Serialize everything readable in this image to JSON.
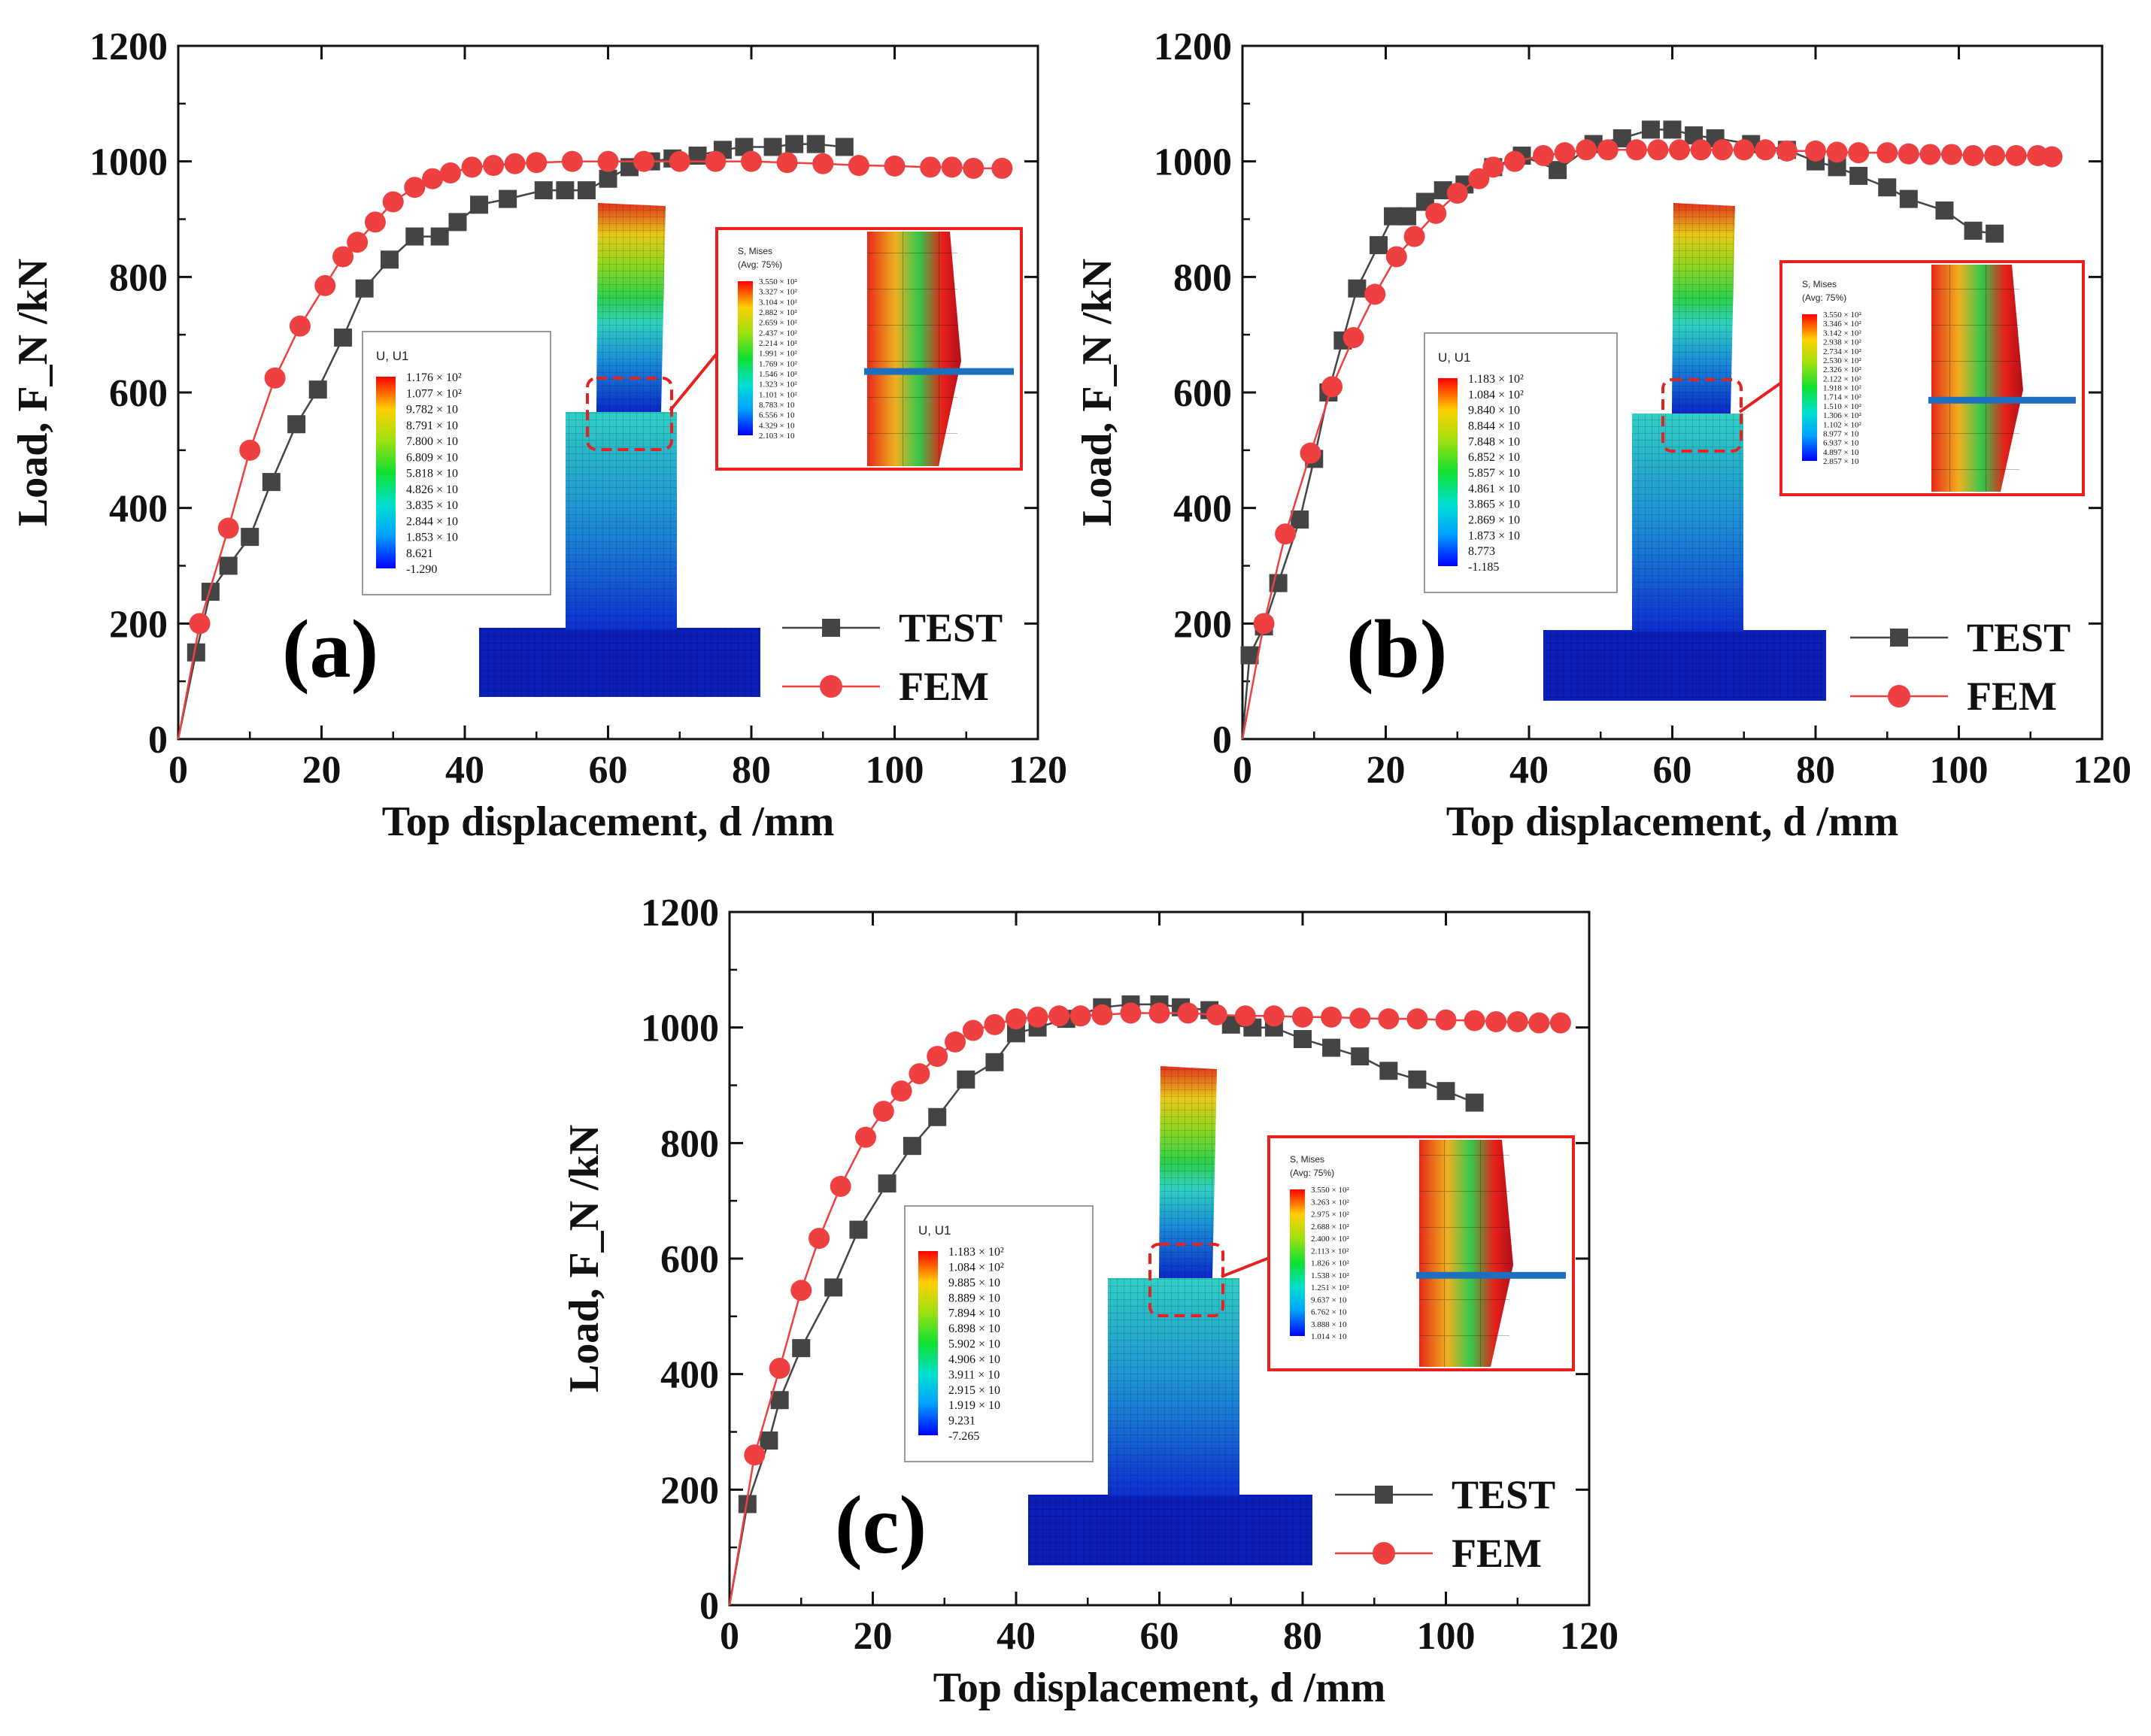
{
  "chart_data": [
    {
      "type": "line",
      "panel_label": "(a)",
      "xlabel": "Top displacement, d /mm",
      "ylabel": "Load, F_N /kN",
      "xlim": [
        0,
        120
      ],
      "ylim": [
        0,
        1200
      ],
      "xticks": [
        "0",
        "20",
        "40",
        "60",
        "80",
        "100",
        "120"
      ],
      "yticks": [
        "0",
        "200",
        "400",
        "600",
        "800",
        "1000",
        "1200"
      ],
      "legend_position": "bottom-right",
      "series": [
        {
          "name": "TEST",
          "marker": "square",
          "color": "#444444",
          "x": [
            0,
            2.5,
            4.5,
            7,
            10,
            13,
            16.5,
            19.5,
            23,
            26,
            29.5,
            33,
            36.5,
            39,
            42,
            46,
            51,
            54,
            57,
            60,
            63,
            66,
            69,
            72.5,
            76,
            79,
            83,
            86,
            89,
            93
          ],
          "y": [
            0,
            150,
            255,
            300,
            350,
            445,
            545,
            605,
            695,
            780,
            830,
            870,
            870,
            895,
            925,
            935,
            950,
            950,
            950,
            970,
            990,
            1000,
            1005,
            1010,
            1020,
            1025,
            1025,
            1030,
            1030,
            1025
          ]
        },
        {
          "name": "FEM",
          "marker": "circle",
          "color": "#ee4040",
          "x": [
            0,
            3,
            7,
            10,
            13.5,
            17,
            20.5,
            23,
            25,
            27.5,
            30,
            33,
            35.5,
            38,
            41,
            44,
            47,
            50,
            55,
            60,
            65,
            70,
            75,
            80,
            85,
            90,
            95,
            100,
            105,
            108,
            111,
            115
          ],
          "y": [
            0,
            200,
            365,
            500,
            625,
            715,
            785,
            835,
            860,
            895,
            930,
            955,
            970,
            980,
            990,
            993,
            996,
            998,
            1000,
            1000,
            1000,
            1000,
            1000,
            1000,
            998,
            996,
            993,
            992,
            990,
            990,
            988,
            988
          ]
        }
      ],
      "contour_legend": {
        "title": "U, U1",
        "labels": [
          "1.176 × 10²",
          "1.077 × 10²",
          "9.782 × 10",
          "8.791 × 10",
          "7.800 × 10",
          "6.809 × 10",
          "5.818 × 10",
          "4.826 × 10",
          "3.835 × 10",
          "2.844 × 10",
          "1.853 × 10",
          "8.621",
          "-1.290"
        ]
      },
      "mises_legend": {
        "title": "S, Mises",
        "subtitle": "(Avg: 75%)",
        "labels": [
          "3.550 × 10²",
          "3.327 × 10²",
          "3.104 × 10²",
          "2.882 × 10²",
          "2.659 × 10²",
          "2.437 × 10²",
          "2.214 × 10²",
          "1.991 × 10²",
          "1.769 × 10²",
          "1.546 × 10²",
          "1.323 × 10²",
          "1.101 × 10²",
          "8.783 × 10",
          "6.556 × 10",
          "4.329 × 10",
          "2.103 × 10"
        ]
      }
    },
    {
      "type": "line",
      "panel_label": "(b)",
      "xlabel": "Top displacement, d /mm",
      "ylabel": "Load, F_N /kN",
      "xlim": [
        0,
        120
      ],
      "ylim": [
        0,
        1200
      ],
      "xticks": [
        "0",
        "20",
        "40",
        "60",
        "80",
        "100",
        "120"
      ],
      "yticks": [
        "0",
        "200",
        "400",
        "600",
        "800",
        "1000",
        "1200"
      ],
      "legend_position": "bottom-right",
      "series": [
        {
          "name": "TEST",
          "marker": "square",
          "color": "#444444",
          "x": [
            0,
            1,
            3,
            5,
            8,
            10,
            12,
            14,
            16,
            19,
            21,
            23,
            25.5,
            28,
            31,
            35,
            39,
            44,
            49,
            53,
            57,
            60,
            63,
            66,
            71,
            76,
            80,
            83,
            86,
            90,
            93,
            98,
            102,
            105
          ],
          "y": [
            0,
            145,
            195,
            270,
            380,
            485,
            600,
            690,
            780,
            855,
            905,
            905,
            930,
            950,
            960,
            990,
            1010,
            985,
            1030,
            1040,
            1055,
            1055,
            1045,
            1040,
            1030,
            1020,
            1000,
            990,
            975,
            955,
            935,
            915,
            880,
            875
          ]
        },
        {
          "name": "FEM",
          "marker": "circle",
          "color": "#ee4040",
          "x": [
            0,
            3,
            6,
            9.5,
            12.5,
            15.5,
            18.5,
            21.5,
            24,
            27,
            30,
            33,
            35,
            38,
            42,
            45,
            48,
            51,
            55,
            58,
            61,
            64,
            67,
            70,
            73,
            76,
            80,
            83,
            86,
            90,
            93,
            96,
            99,
            102,
            105,
            108,
            111,
            113
          ],
          "y": [
            0,
            200,
            355,
            495,
            610,
            695,
            770,
            835,
            870,
            910,
            945,
            970,
            990,
            1000,
            1010,
            1015,
            1020,
            1020,
            1020,
            1020,
            1020,
            1020,
            1020,
            1020,
            1020,
            1018,
            1018,
            1016,
            1015,
            1015,
            1013,
            1012,
            1012,
            1010,
            1010,
            1010,
            1010,
            1008
          ]
        }
      ],
      "contour_legend": {
        "title": "U, U1",
        "labels": [
          "1.183 × 10²",
          "1.084 × 10²",
          "9.840 × 10",
          "8.844 × 10",
          "7.848 × 10",
          "6.852 × 10",
          "5.857 × 10",
          "4.861 × 10",
          "3.865 × 10",
          "2.869 × 10",
          "1.873 × 10",
          "8.773",
          "-1.185"
        ]
      },
      "mises_legend": {
        "title": "S, Mises",
        "subtitle": "(Avg: 75%)",
        "labels": [
          "3.550 × 10²",
          "3.346 × 10²",
          "3.142 × 10²",
          "2.938 × 10²",
          "2.734 × 10²",
          "2.530 × 10²",
          "2.326 × 10²",
          "2.122 × 10²",
          "1.918 × 10²",
          "1.714 × 10²",
          "1.510 × 10²",
          "1.306 × 10²",
          "1.102 × 10²",
          "8.977 × 10",
          "6.937 × 10",
          "4.897 × 10",
          "2.857 × 10"
        ]
      }
    },
    {
      "type": "line",
      "panel_label": "(c)",
      "xlabel": "Top displacement, d /mm",
      "ylabel": "Load, F_N /kN",
      "xlim": [
        0,
        120
      ],
      "ylim": [
        0,
        1200
      ],
      "xticks": [
        "0",
        "20",
        "40",
        "60",
        "80",
        "100",
        "120"
      ],
      "yticks": [
        "0",
        "200",
        "400",
        "600",
        "800",
        "1000",
        "1200"
      ],
      "legend_position": "bottom-right",
      "series": [
        {
          "name": "TEST",
          "marker": "square",
          "color": "#444444",
          "x": [
            0,
            2.5,
            5.5,
            7,
            10,
            14.5,
            18,
            22,
            25.5,
            29,
            33,
            37,
            40,
            43,
            47,
            52,
            56,
            60,
            63,
            67,
            70,
            73,
            76,
            80,
            84,
            88,
            92,
            96,
            100,
            104
          ],
          "y": [
            0,
            175,
            285,
            355,
            445,
            550,
            650,
            730,
            795,
            845,
            910,
            940,
            990,
            1000,
            1015,
            1035,
            1040,
            1040,
            1035,
            1030,
            1005,
            1000,
            1000,
            980,
            965,
            950,
            925,
            910,
            890,
            870
          ]
        },
        {
          "name": "FEM",
          "marker": "circle",
          "color": "#ee4040",
          "x": [
            0,
            3.5,
            7,
            10,
            12.5,
            15.5,
            19,
            21.5,
            24,
            26.5,
            29,
            31.5,
            34,
            37,
            40,
            43,
            46,
            49,
            52,
            56,
            60,
            64,
            68,
            72,
            76,
            80,
            84,
            88,
            92,
            96,
            100,
            104,
            107,
            110,
            113,
            116
          ],
          "y": [
            0,
            260,
            410,
            545,
            635,
            725,
            810,
            855,
            890,
            920,
            950,
            975,
            995,
            1005,
            1015,
            1018,
            1020,
            1020,
            1022,
            1025,
            1025,
            1025,
            1022,
            1020,
            1020,
            1018,
            1018,
            1016,
            1015,
            1015,
            1013,
            1012,
            1010,
            1010,
            1008,
            1008
          ]
        }
      ],
      "contour_legend": {
        "title": "U, U1",
        "labels": [
          "1.183 × 10²",
          "1.084 × 10²",
          "9.885 × 10",
          "8.889 × 10",
          "7.894 × 10",
          "6.898 × 10",
          "5.902 × 10",
          "4.906 × 10",
          "3.911 × 10",
          "2.915 × 10",
          "1.919 × 10",
          "9.231",
          "-7.265"
        ]
      },
      "mises_legend": {
        "title": "S, Mises",
        "subtitle": "(Avg: 75%)",
        "labels": [
          "3.550 × 10²",
          "3.263 × 10²",
          "2.975 × 10²",
          "2.688 × 10²",
          "2.400 × 10²",
          "2.113 × 10²",
          "1.826 × 10²",
          "1.538 × 10²",
          "1.251 × 10²",
          "9.637 × 10",
          "6.762 × 10",
          "3.888 × 10",
          "1.014 × 10"
        ]
      }
    }
  ]
}
